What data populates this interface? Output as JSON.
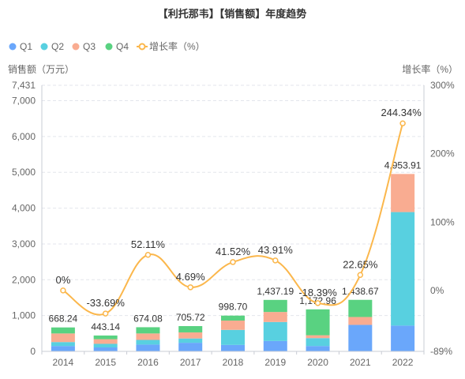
{
  "chart_data": {
    "type": "bar",
    "title": "【利托那韦】【销售额】年度趋势",
    "legend_position": "top-left",
    "legend": [
      {
        "label": "Q1",
        "color": "#6aa7fb",
        "shape": "circle"
      },
      {
        "label": "Q2",
        "color": "#58d0e0",
        "shape": "circle"
      },
      {
        "label": "Q3",
        "color": "#f9ac91",
        "shape": "circle"
      },
      {
        "label": "Q4",
        "color": "#59d281",
        "shape": "circle"
      },
      {
        "label": "增长率（%）",
        "color": "#fbb74c",
        "shape": "line"
      }
    ],
    "ylabel_left": "销售额（万元）",
    "ylabel_right": "增长率（%）",
    "categories": [
      "2014",
      "2015",
      "2016",
      "2017",
      "2018",
      "2019",
      "2020",
      "2021",
      "2022"
    ],
    "ylim_left": [
      0,
      7431
    ],
    "yticks_left": [
      "0",
      "1,000",
      "2,000",
      "3,000",
      "4,000",
      "5,000",
      "6,000",
      "7,000",
      "7,431"
    ],
    "yticks_left_values": [
      0,
      1000,
      2000,
      3000,
      4000,
      5000,
      6000,
      7000,
      7431
    ],
    "ylim_right": [
      -89,
      300
    ],
    "yticks_right": [
      "-89%",
      "0%",
      "100%",
      "200%",
      "300%"
    ],
    "yticks_right_values": [
      -89,
      0,
      100,
      200,
      300
    ],
    "grid": true,
    "series": [
      {
        "name": "Q1",
        "color": "#6aa7fb",
        "values": [
          150,
          110,
          190,
          240,
          180,
          290,
          150,
          740,
          720
        ]
      },
      {
        "name": "Q2",
        "color": "#58d0e0",
        "values": [
          110,
          100,
          130,
          120,
          420,
          530,
          220,
          0,
          3170
        ]
      },
      {
        "name": "Q3",
        "color": "#f9ac91",
        "values": [
          240,
          130,
          180,
          170,
          260,
          280,
          80,
          220,
          1064
        ]
      },
      {
        "name": "Q4",
        "color": "#59d281",
        "values": [
          168.24,
          103.14,
          174.08,
          175.72,
          138.7,
          337.19,
          722.96,
          478.67,
          0
        ]
      }
    ],
    "totals": [
      668.24,
      443.14,
      674.08,
      705.72,
      998.7,
      1437.19,
      1172.96,
      1438.67,
      4953.91
    ],
    "total_labels": [
      "668.24",
      "443.14",
      "674.08",
      "705.72",
      "998.70",
      "1,437.19",
      "1,172.96",
      "1,438.67",
      "4,953.91"
    ],
    "growth": {
      "name": "增长率（%）",
      "color": "#fbb74c",
      "values": [
        0,
        -33.69,
        52.11,
        4.69,
        41.52,
        43.91,
        -18.39,
        22.65,
        244.34
      ],
      "labels": [
        "0%",
        "-33.69%",
        "52.11%",
        "4.69%",
        "41.52%",
        "43.91%",
        "-18.39%",
        "22.65%",
        "244.34%"
      ]
    }
  }
}
